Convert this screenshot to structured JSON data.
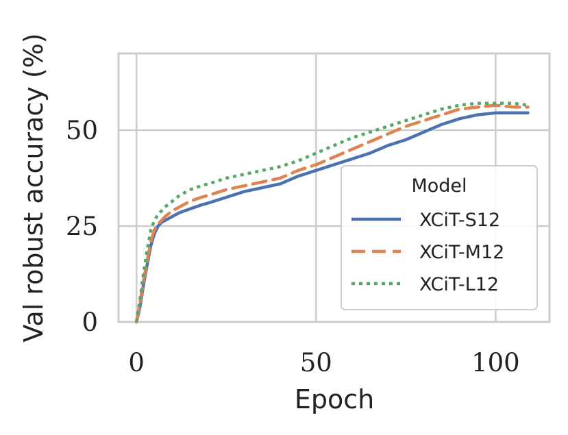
{
  "chart_data": {
    "type": "line",
    "title": "",
    "xlabel": "Epoch",
    "ylabel": "Val robust accuracy (%)",
    "xlim": [
      -5,
      115
    ],
    "ylim": [
      0,
      70
    ],
    "xticks": [
      0,
      50,
      100
    ],
    "yticks": [
      0,
      25,
      50
    ],
    "grid": true,
    "legend": {
      "title": "Model",
      "position": "lower-right"
    },
    "series": [
      {
        "name": "XCiT-S12",
        "style": "solid",
        "color": "#4c72b0",
        "x": [
          0,
          1,
          2,
          3,
          4,
          5,
          6,
          7,
          8,
          10,
          12,
          15,
          18,
          20,
          25,
          30,
          35,
          40,
          45,
          50,
          55,
          60,
          65,
          70,
          75,
          80,
          85,
          90,
          95,
          100,
          105,
          109
        ],
        "y": [
          0,
          4,
          10,
          15,
          20,
          23,
          25,
          26,
          26.5,
          27.5,
          28.5,
          29.5,
          30.5,
          31,
          32.5,
          34,
          35,
          36,
          38,
          39.5,
          41,
          42.5,
          44,
          46,
          47.5,
          49.5,
          51.5,
          53,
          54,
          54.5,
          54.5,
          54.5
        ]
      },
      {
        "name": "XCiT-M12",
        "style": "dashed",
        "color": "#dd8452",
        "x": [
          0,
          1,
          2,
          3,
          4,
          5,
          6,
          7,
          8,
          10,
          12,
          15,
          18,
          20,
          25,
          30,
          35,
          40,
          45,
          50,
          55,
          60,
          65,
          70,
          75,
          80,
          85,
          90,
          95,
          100,
          105,
          109
        ],
        "y": [
          0,
          5,
          11,
          16,
          21,
          24,
          25.5,
          26.5,
          27.5,
          29,
          30,
          31.5,
          32.5,
          33,
          34.5,
          35.5,
          36.5,
          37.5,
          39.5,
          41,
          43,
          45,
          47,
          49,
          51,
          52.5,
          54,
          55.5,
          56,
          56.5,
          56,
          56
        ]
      },
      {
        "name": "XCiT-L12",
        "style": "dotted",
        "color": "#55a868",
        "x": [
          0,
          1,
          2,
          3,
          4,
          5,
          6,
          7,
          8,
          10,
          12,
          15,
          18,
          20,
          25,
          30,
          35,
          40,
          45,
          50,
          55,
          60,
          65,
          70,
          75,
          80,
          85,
          90,
          95,
          100,
          105,
          109
        ],
        "y": [
          0,
          6,
          13,
          19,
          24,
          26.5,
          28,
          29,
          30,
          31.5,
          33,
          34.5,
          35.5,
          36,
          37.5,
          38.5,
          39.5,
          40.5,
          42,
          44,
          46,
          48,
          49.5,
          51,
          52.5,
          54,
          55.5,
          56.5,
          57,
          57,
          57,
          56.5
        ]
      }
    ]
  }
}
